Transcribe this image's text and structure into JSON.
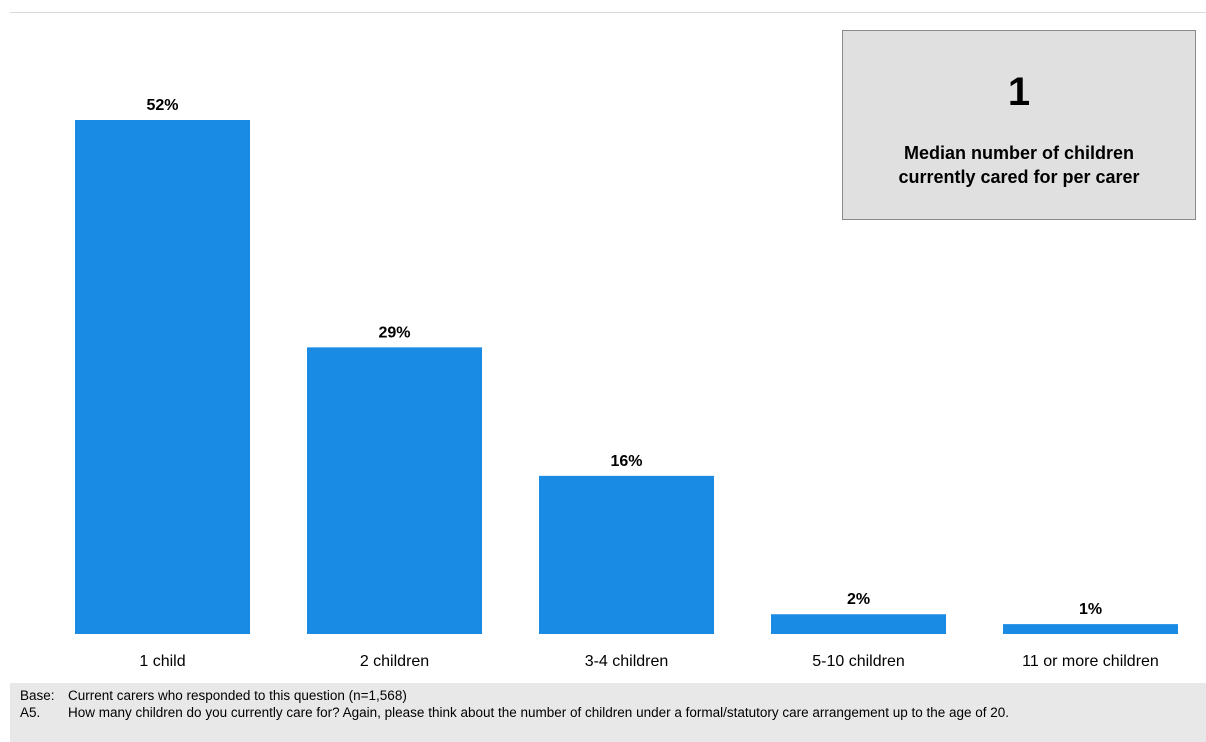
{
  "chart_data": {
    "type": "bar",
    "categories": [
      "1 child",
      "2 children",
      "3-4 children",
      "5-10 children",
      "11 or more children"
    ],
    "values": [
      52,
      29,
      16,
      2,
      1
    ],
    "value_labels": [
      "52%",
      "29%",
      "16%",
      "2%",
      "1%"
    ],
    "unit": "%",
    "ylim": [
      0,
      52
    ],
    "grid": false,
    "bar_color": "#1a8be5"
  },
  "callout": {
    "value": "1",
    "label": "Median number of children currently cared for per carer"
  },
  "footnote": {
    "base_key": "Base:",
    "base_text": "Current carers who responded to this question (n=1,568)",
    "question_key": "A5.",
    "question_text": "How many children do you currently care for? Again, please think about the number of children under a formal/statutory care arrangement up to the age of 20."
  },
  "colors": {
    "bar": "#1a8be5",
    "callout_bg": "#e0e0e0",
    "footnote_bg": "#e8e8e8"
  }
}
